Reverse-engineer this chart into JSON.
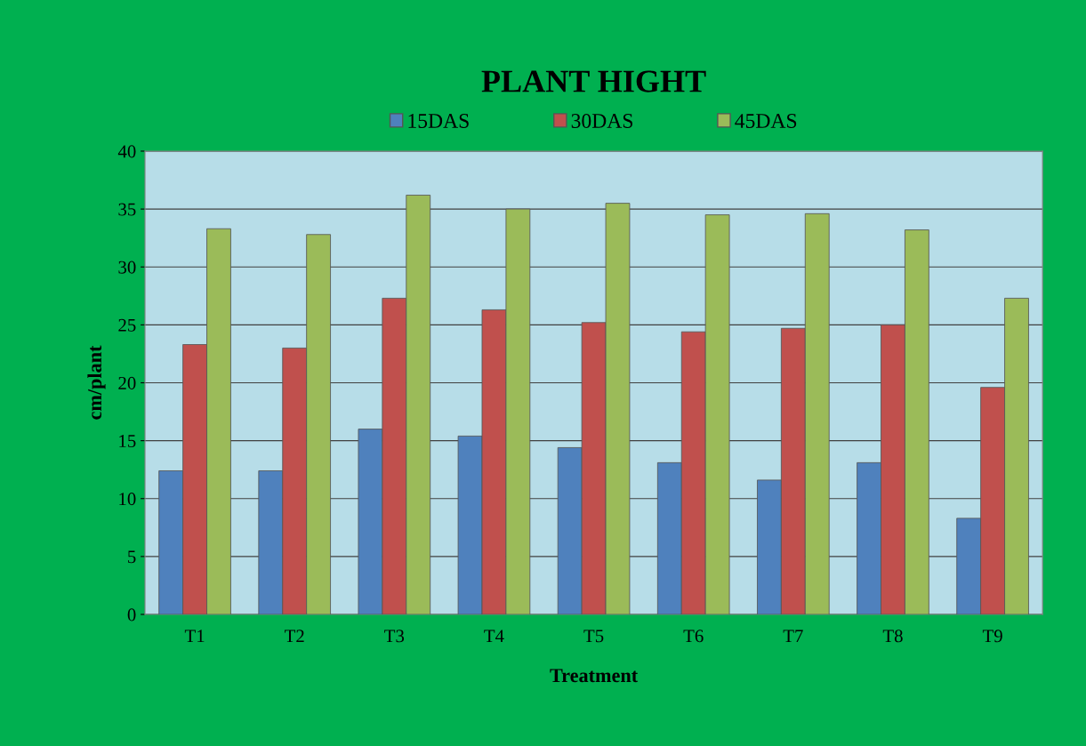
{
  "chart_data": {
    "type": "bar",
    "title": "PLANT HIGHT",
    "xlabel": "Treatment",
    "ylabel": "cm/plant",
    "categories": [
      "T1",
      "T2",
      "T3",
      "T4",
      "T5",
      "T6",
      "T7",
      "T8",
      "T9"
    ],
    "series": [
      {
        "name": "15DAS",
        "color": "#4f81bd",
        "values": [
          12.4,
          12.4,
          16.0,
          15.4,
          14.4,
          13.1,
          11.6,
          13.1,
          8.3
        ]
      },
      {
        "name": "30DAS",
        "color": "#c0504d",
        "values": [
          23.3,
          23.0,
          27.3,
          26.3,
          25.2,
          24.4,
          24.7,
          25.0,
          19.6
        ]
      },
      {
        "name": "45DAS",
        "color": "#9bbb59",
        "values": [
          33.3,
          32.8,
          36.2,
          35.0,
          35.5,
          34.5,
          34.6,
          33.2,
          27.3
        ]
      }
    ],
    "ylim": [
      0,
      40
    ],
    "yticks": [
      0,
      5,
      10,
      15,
      20,
      25,
      30,
      35,
      40
    ],
    "grid": "y",
    "legend": "top"
  }
}
